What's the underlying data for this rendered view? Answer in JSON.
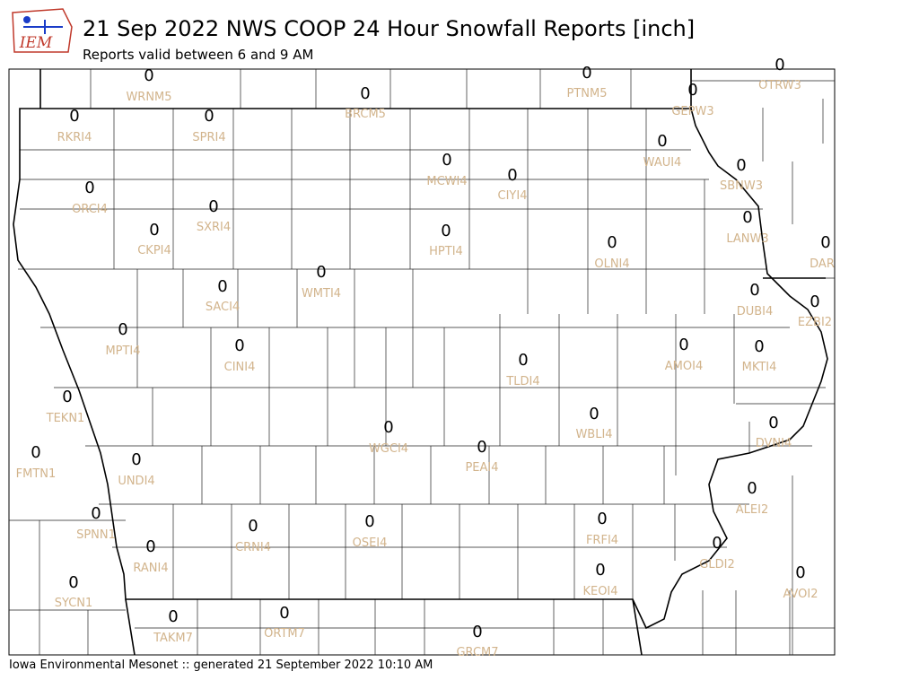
{
  "header": {
    "logo": "IEM",
    "title": "21 Sep 2022 NWS COOP 24 Hour Snowfall Reports [inch]",
    "subtitle": "Reports valid between 6 and 9 AM"
  },
  "stations": [
    {
      "id": "WRNM5",
      "value": 0
    },
    {
      "id": "BRCM5",
      "value": 0
    },
    {
      "id": "PTNM5",
      "value": 0
    },
    {
      "id": "OTRW3",
      "value": 0
    },
    {
      "id": "GEPW3",
      "value": 0
    },
    {
      "id": "RKRI4",
      "value": 0
    },
    {
      "id": "SPRI4",
      "value": 0
    },
    {
      "id": "WAUI4",
      "value": 0
    },
    {
      "id": "MCWI4",
      "value": 0
    },
    {
      "id": "CIYI4",
      "value": 0
    },
    {
      "id": "SBNW3",
      "value": 0
    },
    {
      "id": "ORCI4",
      "value": 0
    },
    {
      "id": "SXRI4",
      "value": 0
    },
    {
      "id": "LANW3",
      "value": 0
    },
    {
      "id": "CKPI4",
      "value": 0
    },
    {
      "id": "HPTI4",
      "value": 0
    },
    {
      "id": "OLNI4",
      "value": 0
    },
    {
      "id": "DAR",
      "value": 0
    },
    {
      "id": "WMTI4",
      "value": 0
    },
    {
      "id": "SACI4",
      "value": 0
    },
    {
      "id": "DUBI4",
      "value": 0
    },
    {
      "id": "EZBI2",
      "value": 0
    },
    {
      "id": "MPTI4",
      "value": 0
    },
    {
      "id": "AMOI4",
      "value": 0
    },
    {
      "id": "MKTI4",
      "value": 0
    },
    {
      "id": "CINI4",
      "value": 0
    },
    {
      "id": "TLDI4",
      "value": 0
    },
    {
      "id": "TEKN1",
      "value": 0
    },
    {
      "id": "WBLI4",
      "value": 0
    },
    {
      "id": "DVNI4",
      "value": 0
    },
    {
      "id": "WGCI4",
      "value": 0
    },
    {
      "id": "PEAI4",
      "value": 0
    },
    {
      "id": "FMTN1",
      "value": 0
    },
    {
      "id": "UNDI4",
      "value": 0
    },
    {
      "id": "ALEI2",
      "value": 0
    },
    {
      "id": "SPNN1",
      "value": 0
    },
    {
      "id": "OSEI4",
      "value": 0
    },
    {
      "id": "FRFI4",
      "value": 0
    },
    {
      "id": "CRNI4",
      "value": 0
    },
    {
      "id": "GLDI2",
      "value": 0
    },
    {
      "id": "RANI4",
      "value": 0
    },
    {
      "id": "KEOI4",
      "value": 0
    },
    {
      "id": "AVOI2",
      "value": 0
    },
    {
      "id": "SYCN1",
      "value": 0
    },
    {
      "id": "TAKM7",
      "value": 0
    },
    {
      "id": "ORTM7",
      "value": 0
    },
    {
      "id": "GRCM7",
      "value": 0
    }
  ],
  "footer": "Iowa Environmental Mesonet :: generated 21 September 2022 10:10 AM"
}
